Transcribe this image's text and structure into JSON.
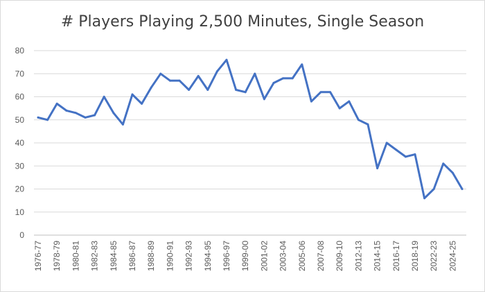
{
  "chart_data": {
    "type": "line",
    "title": "# Players Playing 2,500 Minutes, Single Season",
    "xlabel": "",
    "ylabel": "",
    "ylim": [
      0,
      80
    ],
    "y_ticks": [
      0,
      10,
      20,
      30,
      40,
      50,
      60,
      70,
      80
    ],
    "grid": "horizontal",
    "line_color": "#4472C4",
    "x_tick_labels": [
      "1976-77",
      "1978-79",
      "1980-81",
      "1982-83",
      "1984-85",
      "1986-87",
      "1988-89",
      "1990-91",
      "1992-93",
      "1994-95",
      "1996-97",
      "1999-00",
      "2001-02",
      "2003-04",
      "2005-06",
      "2007-08",
      "2009-10",
      "2012-13",
      "2014-15",
      "2016-17",
      "2018-19",
      "2022-23",
      "2024-25"
    ],
    "x_tick_every": 2,
    "series": [
      {
        "values": [
          51,
          50,
          57,
          54,
          53,
          51,
          52,
          60,
          53,
          48,
          61,
          57,
          64,
          70,
          67,
          67,
          63,
          69,
          63,
          71,
          76,
          63,
          62,
          70,
          59,
          66,
          68,
          68,
          74,
          58,
          62,
          62,
          55,
          58,
          50,
          48,
          29,
          40,
          37,
          34,
          35,
          16,
          20,
          31,
          27,
          20
        ]
      }
    ]
  }
}
